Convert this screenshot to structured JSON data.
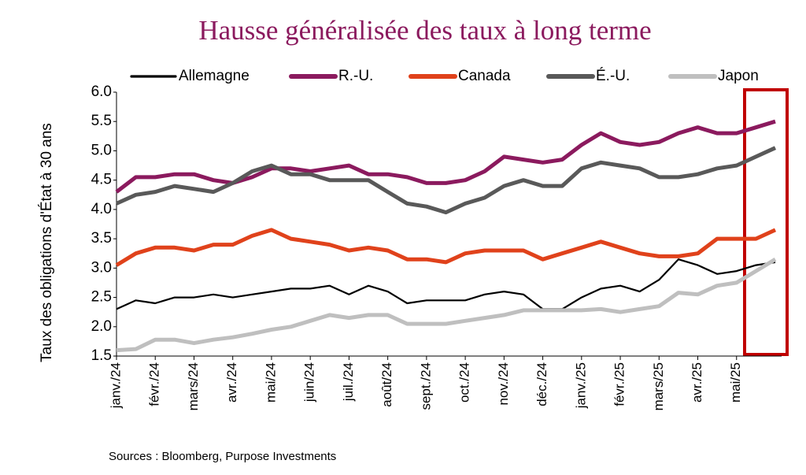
{
  "chart_data": {
    "type": "line",
    "title": "Hausse généralisée des taux à long terme",
    "y_label": "Taux des obligations d'État à 30 ans",
    "source": "Sources : Bloomberg, Purpose Investments",
    "categories": [
      "janv./24",
      null,
      "févr./24",
      null,
      "mars/24",
      null,
      "avr./24",
      null,
      "mai/24",
      null,
      "juin/24",
      null,
      "juil./24",
      null,
      "août/24",
      null,
      "sept./24",
      null,
      "oct./24",
      null,
      "nov./24",
      null,
      "déc./24",
      null,
      "janv./25",
      null,
      "févr./25",
      null,
      "mars/25",
      null,
      "avr./25",
      null,
      "mai/25",
      null,
      null
    ],
    "series": [
      {
        "name": "Allemagne",
        "color": "#000000",
        "values": [
          2.3,
          2.45,
          2.4,
          2.5,
          2.5,
          2.55,
          2.5,
          2.55,
          2.6,
          2.65,
          2.65,
          2.7,
          2.55,
          2.7,
          2.6,
          2.4,
          2.45,
          2.45,
          2.45,
          2.55,
          2.6,
          2.55,
          2.3,
          2.3,
          2.5,
          2.65,
          2.7,
          2.6,
          2.8,
          3.15,
          3.05,
          2.9,
          2.95,
          3.05,
          3.1
        ]
      },
      {
        "name": "R.-U.",
        "color": "#8b1a5e",
        "values": [
          4.3,
          4.55,
          4.55,
          4.6,
          4.6,
          4.5,
          4.45,
          4.55,
          4.7,
          4.7,
          4.65,
          4.7,
          4.75,
          4.6,
          4.6,
          4.55,
          4.45,
          4.45,
          4.5,
          4.65,
          4.9,
          4.85,
          4.8,
          4.85,
          5.1,
          5.3,
          5.15,
          5.1,
          5.15,
          5.3,
          5.4,
          5.3,
          5.3,
          5.4,
          5.5
        ]
      },
      {
        "name": "Canada",
        "color": "#e0421b",
        "values": [
          3.05,
          3.25,
          3.35,
          3.35,
          3.3,
          3.4,
          3.4,
          3.55,
          3.65,
          3.5,
          3.45,
          3.4,
          3.3,
          3.35,
          3.3,
          3.15,
          3.15,
          3.1,
          3.25,
          3.3,
          3.3,
          3.3,
          3.15,
          3.25,
          3.35,
          3.45,
          3.35,
          3.25,
          3.2,
          3.2,
          3.25,
          3.5,
          3.5,
          3.5,
          3.65
        ]
      },
      {
        "name": "É.-U.",
        "color": "#595959",
        "values": [
          4.1,
          4.25,
          4.3,
          4.4,
          4.35,
          4.3,
          4.45,
          4.65,
          4.75,
          4.6,
          4.6,
          4.5,
          4.5,
          4.5,
          4.3,
          4.1,
          4.05,
          3.95,
          4.1,
          4.2,
          4.4,
          4.5,
          4.4,
          4.4,
          4.7,
          4.8,
          4.75,
          4.7,
          4.55,
          4.55,
          4.6,
          4.7,
          4.75,
          4.9,
          5.05
        ]
      },
      {
        "name": "Japon",
        "color": "#bfbfbf",
        "values": [
          1.6,
          1.62,
          1.78,
          1.78,
          1.72,
          1.78,
          1.82,
          1.88,
          1.95,
          2.0,
          2.1,
          2.2,
          2.15,
          2.2,
          2.2,
          2.05,
          2.05,
          2.05,
          2.1,
          2.15,
          2.2,
          2.28,
          2.28,
          2.28,
          2.28,
          2.3,
          2.25,
          2.3,
          2.35,
          2.58,
          2.55,
          2.7,
          2.75,
          2.95,
          3.15
        ]
      }
    ],
    "ylim": [
      1.5,
      6.0
    ],
    "yticks": [
      {
        "value": 1.5,
        "label": "1.5"
      },
      {
        "value": 2,
        "label": "2.0"
      },
      {
        "value": 2.5,
        "label": "2.5"
      },
      {
        "value": 3,
        "label": "3.0"
      },
      {
        "value": 3.5,
        "label": "3.5"
      },
      {
        "value": 4,
        "label": "4.0"
      },
      {
        "value": 4.5,
        "label": "4.5"
      },
      {
        "value": 5,
        "label": "5.0"
      },
      {
        "value": 5.5,
        "label": "5.5"
      },
      {
        "value": 6,
        "label": "6.0"
      }
    ],
    "grid": false
  }
}
